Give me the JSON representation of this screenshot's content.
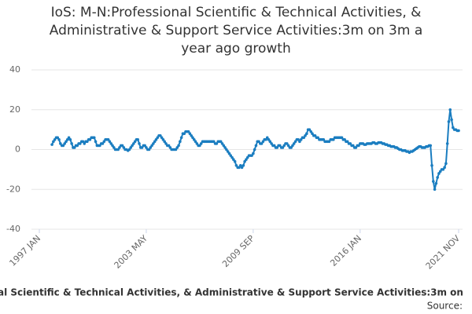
{
  "chart_data": {
    "type": "line",
    "title": [
      "IoS: M-N:Professional Scientific & Technical Activities, &",
      "Administrative & Support Service Activities:3m on 3m a",
      "year ago growth"
    ],
    "caption": "al Scientific & Technical Activities, & Administrative & Support Service Activities:3m on",
    "source": "Source:",
    "categories": [
      "1997 JAN",
      null,
      null,
      null,
      null,
      null,
      null,
      null,
      null,
      null,
      null,
      null,
      null,
      null,
      null,
      null,
      null,
      null,
      null,
      null,
      null,
      null,
      null,
      null,
      null,
      null,
      null,
      null,
      null,
      null,
      null,
      null,
      null,
      null,
      null,
      null,
      null,
      null,
      null,
      null,
      null,
      null,
      null,
      null,
      null,
      null,
      null,
      null,
      null,
      null,
      null,
      null,
      null,
      null,
      null,
      null,
      null,
      null,
      null,
      null,
      null,
      null,
      null,
      null,
      null,
      null,
      null,
      null,
      null,
      null,
      null,
      null,
      null,
      null,
      null,
      null,
      "2003 MAY",
      null,
      null,
      null,
      null,
      null,
      null,
      null,
      null,
      null,
      null,
      null,
      null,
      null,
      null,
      null,
      null,
      null,
      null,
      null,
      null,
      null,
      null,
      null,
      null,
      null,
      null,
      null,
      null,
      null,
      null,
      null,
      null,
      null,
      null,
      null,
      null,
      null,
      null,
      null,
      null,
      null,
      null,
      null,
      null,
      null,
      null,
      null,
      null,
      null,
      null,
      null,
      null,
      null,
      null,
      null,
      null,
      null,
      null,
      null,
      null,
      null,
      null,
      null,
      null,
      null,
      null,
      null,
      null,
      null,
      null,
      null,
      null,
      null,
      null,
      null,
      "2009 SEP",
      null,
      null,
      null,
      null,
      null,
      null,
      null,
      null,
      null,
      null,
      null,
      null,
      null,
      null,
      null,
      null,
      null,
      null,
      null,
      null,
      null,
      null,
      null,
      null,
      null,
      null,
      null,
      null,
      null,
      null,
      null,
      null,
      null,
      null,
      null,
      null,
      null,
      null,
      null,
      null,
      null,
      null,
      null,
      null,
      null,
      null,
      null,
      null,
      null,
      null,
      null,
      null,
      null,
      null,
      null,
      null,
      null,
      null,
      null,
      null,
      null,
      null,
      null,
      null,
      null,
      null,
      null,
      null,
      null,
      null,
      null,
      null,
      null,
      null,
      null,
      "2016 JAN",
      null,
      null,
      null,
      null,
      null,
      null,
      null,
      null,
      null,
      null,
      null,
      null,
      null,
      null,
      null,
      null,
      null,
      null,
      null,
      null,
      null,
      null,
      null,
      null,
      null,
      null,
      null,
      null,
      null,
      null,
      null,
      null,
      null,
      null,
      null,
      null,
      null,
      null,
      null,
      null,
      null,
      null,
      null,
      null,
      null,
      null,
      null,
      null,
      null,
      null,
      null,
      null,
      null,
      null,
      null,
      null,
      null,
      null,
      null,
      null,
      null,
      null,
      null,
      null,
      null,
      null,
      null,
      null,
      null,
      "2021 NOV"
    ],
    "series": [
      {
        "name": "al Scientific & Technical Activities, & Administrative & Support Service Activities:3m on",
        "color": "#1a7dc0",
        "values": [
          null,
          null,
          null,
          null,
          null,
          null,
          null,
          null,
          null,
          2.5,
          4,
          5,
          6,
          6,
          5,
          3,
          2,
          2,
          3,
          4,
          5,
          6,
          5,
          3,
          1,
          1,
          2,
          2,
          3,
          3,
          4,
          4,
          3,
          4,
          4,
          5,
          5,
          6,
          6,
          6,
          4,
          2,
          2,
          2,
          3,
          3,
          4,
          5,
          5,
          5,
          4,
          3,
          2,
          1,
          0,
          0,
          0,
          1,
          2,
          2,
          1,
          0,
          0,
          -0.5,
          0,
          1,
          2,
          3,
          4,
          5,
          5,
          3,
          1,
          1,
          2,
          2,
          1,
          0,
          0,
          1,
          2,
          3,
          4,
          5,
          6,
          7,
          7,
          6,
          5,
          4,
          3,
          2,
          2,
          1,
          0,
          0,
          0,
          0,
          1,
          2,
          4,
          6,
          8,
          8,
          9,
          9,
          9,
          8,
          7,
          6,
          5,
          4,
          3,
          2,
          2,
          3,
          4,
          4,
          4,
          4,
          4,
          4,
          4,
          4,
          4,
          3,
          3,
          4,
          4,
          4,
          3,
          2,
          1,
          0,
          -1,
          -2,
          -3,
          -4,
          -5,
          -6,
          -8,
          -9,
          -9,
          -8,
          -9,
          -8,
          -6,
          -5,
          -4,
          -3,
          -3,
          -3,
          -2,
          0,
          2,
          4,
          4,
          3,
          3,
          4,
          5,
          5,
          6,
          5,
          4,
          3,
          2,
          2,
          1,
          1,
          2,
          2,
          1,
          1,
          2,
          3,
          3,
          2,
          1,
          1,
          2,
          3,
          4,
          5,
          5,
          4,
          5,
          6,
          6,
          7,
          8,
          10,
          10,
          9,
          8,
          7,
          7,
          6,
          6,
          5,
          5,
          5,
          5,
          4,
          4,
          4,
          4,
          5,
          5,
          5,
          6,
          6,
          6,
          6,
          6,
          6,
          5,
          5,
          4,
          4,
          3,
          3,
          2,
          2,
          1,
          1,
          2,
          2,
          3,
          3,
          3,
          2.5,
          2.5,
          3,
          3,
          3,
          3,
          3.5,
          3.5,
          3,
          3,
          3.5,
          3.5,
          3.5,
          3,
          3,
          2.5,
          2.5,
          2,
          2,
          1.5,
          1.5,
          1.5,
          1,
          1,
          0.5,
          0,
          0,
          -0.5,
          -0.5,
          -0.5,
          -1,
          -1,
          -1.5,
          -1,
          -1,
          -0.5,
          0,
          0.5,
          1,
          1.5,
          1.5,
          1,
          1,
          1,
          1.5,
          1.5,
          2,
          2,
          -8,
          -16,
          -20,
          -17,
          -14,
          -12,
          -11,
          -10,
          -10,
          -9,
          -7,
          3,
          14,
          20,
          15,
          11,
          10,
          10,
          9.5,
          9.5
        ]
      }
    ],
    "ylim": [
      -40,
      40
    ],
    "yticks": [
      -40,
      -20,
      0,
      20,
      40
    ],
    "grid": true
  }
}
